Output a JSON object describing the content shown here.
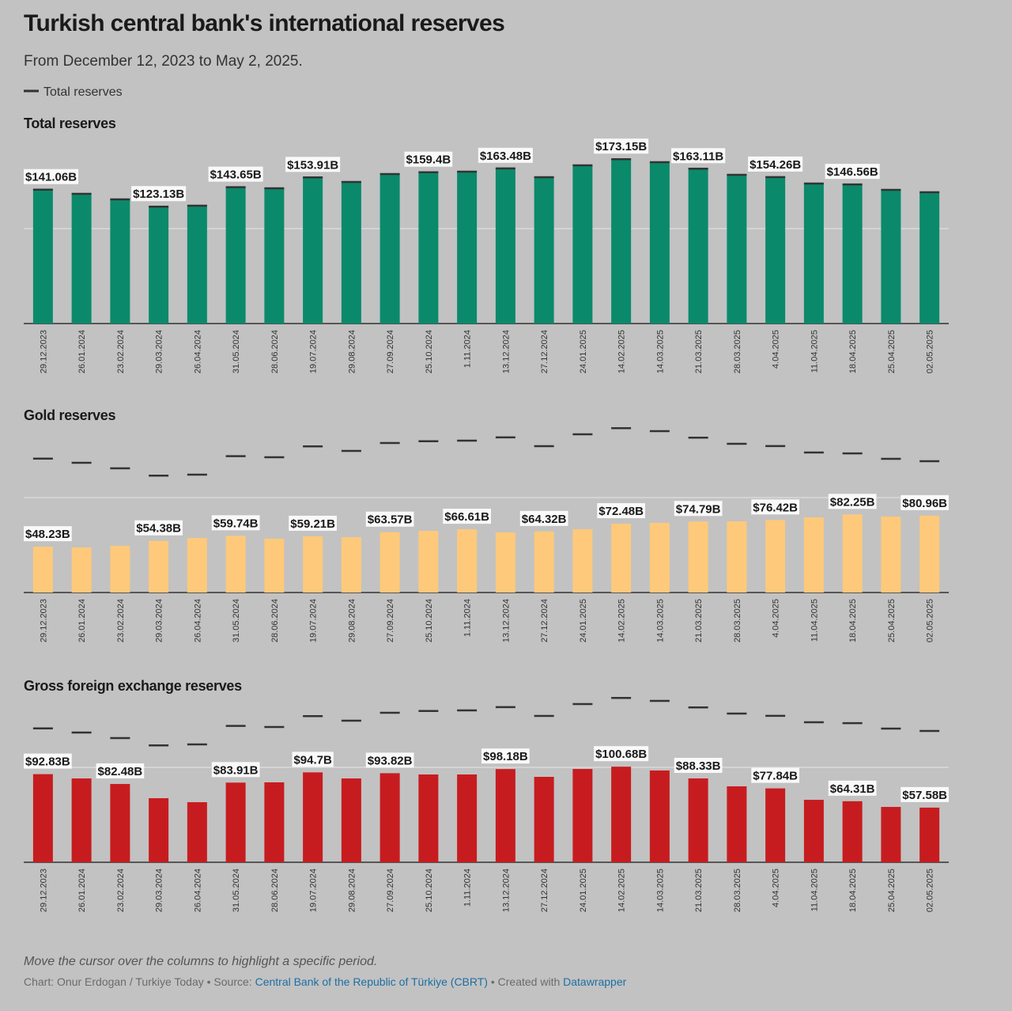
{
  "title": "Turkish central bank's international reserves",
  "subtitle": "From December 12, 2023 to May 2, 2025.",
  "legend": {
    "label": "Total reserves",
    "color": "#333333"
  },
  "note": "Move the cursor over the columns to highlight a specific period.",
  "footer": {
    "credit": "Chart: Onur Erdogan / Turkiye Today • Source: ",
    "source": "Central Bank of the Republic of Türkiye (CBRT)",
    "created": " • Created with ",
    "tool": "Datawrapper"
  },
  "chart_data": [
    {
      "type": "bar",
      "title": "Total reserves",
      "categories": [
        "29.12.2023",
        "26.01.2024",
        "23.02.2024",
        "29.03.2024",
        "26.04.2024",
        "31.05.2024",
        "28.06.2024",
        "19.07.2024",
        "29.08.2024",
        "27.09.2024",
        "25.10.2024",
        "1.11.2024",
        "13.12.2024",
        "27.12.2024",
        "24.01.2025",
        "14.02.2025",
        "14.03.2025",
        "21.03.2025",
        "28.03.2025",
        "4.04.2025",
        "11.04.2025",
        "18.04.2025",
        "25.04.2025",
        "02.05.2025"
      ],
      "series": [
        {
          "name": "Total reserves",
          "color": "#0a8a6b",
          "values": [
            141.06,
            136.7,
            130.8,
            123.13,
            124.2,
            143.65,
            142.5,
            153.91,
            149.2,
            157.5,
            159.4,
            160,
            163.48,
            154.2,
            166.7,
            173.15,
            170,
            163.11,
            156.7,
            154.26,
            147.5,
            146.56,
            140.8,
            138.3
          ],
          "value_labels": [
            "$141.06B",
            null,
            null,
            "$123.13B",
            null,
            "$143.65B",
            null,
            "$153.91B",
            null,
            null,
            "$159.4B",
            null,
            "$163.48B",
            null,
            null,
            "$173.15B",
            null,
            "$163.11B",
            null,
            "$154.26B",
            null,
            "$146.56B",
            null,
            null
          ]
        }
      ],
      "ylim": [
        0,
        200
      ],
      "yticks": [
        0,
        100
      ],
      "grid": true
    },
    {
      "type": "bar",
      "title": "Gold reserves",
      "categories": [
        "29.12.2023",
        "26.01.2024",
        "23.02.2024",
        "29.03.2024",
        "26.04.2024",
        "31.05.2024",
        "28.06.2024",
        "19.07.2024",
        "29.08.2024",
        "27.09.2024",
        "25.10.2024",
        "1.11.2024",
        "13.12.2024",
        "27.12.2024",
        "24.01.2025",
        "14.02.2025",
        "14.03.2025",
        "21.03.2025",
        "28.03.2025",
        "4.04.2025",
        "11.04.2025",
        "18.04.2025",
        "25.04.2025",
        "02.05.2025"
      ],
      "series": [
        {
          "name": "Gold reserves",
          "color": "#fec97a",
          "values": [
            48.23,
            47.5,
            49.2,
            54.38,
            57.5,
            59.74,
            56.7,
            59.21,
            58.3,
            63.57,
            65,
            66.61,
            63.3,
            64.32,
            66.7,
            72.48,
            73.3,
            74.79,
            75,
            76.42,
            79.2,
            82.25,
            80,
            80.96
          ],
          "value_labels": [
            "$48.23B",
            null,
            null,
            "$54.38B",
            null,
            "$59.74B",
            null,
            "$59.21B",
            null,
            "$63.57B",
            null,
            "$66.61B",
            null,
            "$64.32B",
            null,
            "$72.48B",
            null,
            "$74.79B",
            null,
            "$76.42B",
            null,
            "$82.25B",
            null,
            "$80.96B"
          ]
        }
      ],
      "ylim": [
        0,
        200
      ],
      "yticks": [
        0,
        100
      ],
      "grid": true
    },
    {
      "type": "bar",
      "title": "Gross foreign exchange reserves",
      "categories": [
        "29.12.2023",
        "26.01.2024",
        "23.02.2024",
        "29.03.2024",
        "26.04.2024",
        "31.05.2024",
        "28.06.2024",
        "19.07.2024",
        "29.08.2024",
        "27.09.2024",
        "25.10.2024",
        "1.11.2024",
        "13.12.2024",
        "27.12.2024",
        "24.01.2025",
        "14.02.2025",
        "14.03.2025",
        "21.03.2025",
        "28.03.2025",
        "4.04.2025",
        "11.04.2025",
        "18.04.2025",
        "25.04.2025",
        "02.05.2025"
      ],
      "series": [
        {
          "name": "Gross foreign exchange reserves",
          "color": "#c71c1f",
          "values": [
            92.83,
            88.3,
            82.48,
            67.5,
            63.3,
            83.91,
            84.2,
            94.7,
            88.3,
            93.82,
            92.5,
            92.5,
            98.18,
            90,
            98.3,
            100.68,
            96.7,
            88.33,
            80,
            77.84,
            65.8,
            64.31,
            58.3,
            57.58
          ],
          "value_labels": [
            "$92.83B",
            null,
            "$82.48B",
            null,
            null,
            "$83.91B",
            null,
            "$94.7B",
            null,
            "$93.82B",
            null,
            null,
            "$98.18B",
            null,
            null,
            "$100.68B",
            null,
            "$88.33B",
            null,
            "$77.84B",
            null,
            "$64.31B",
            null,
            "$57.58B"
          ]
        }
      ],
      "ylim": [
        0,
        200
      ],
      "yticks": [
        0,
        100
      ],
      "grid": true
    }
  ]
}
